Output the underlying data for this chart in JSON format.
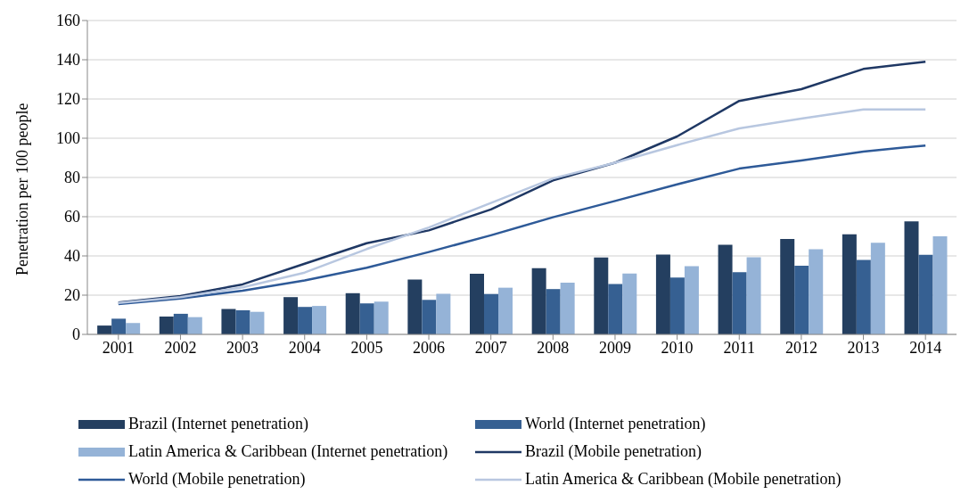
{
  "chart_data": {
    "type": "bar",
    "ylabel": "Penetration per 100 people",
    "categories": [
      "2001",
      "2002",
      "2003",
      "2004",
      "2005",
      "2006",
      "2007",
      "2008",
      "2009",
      "2010",
      "2011",
      "2012",
      "2013",
      "2014"
    ],
    "series": [
      {
        "name": "Brazil (Internet penetration)",
        "color": "#243f60",
        "values": [
          4.5,
          9.1,
          13,
          19,
          21,
          28,
          30.9,
          33.8,
          39.2,
          40.7,
          45.7,
          48.6,
          51,
          57.6
        ]
      },
      {
        "name": "World (Internet penetration)",
        "color": "#366092",
        "values": [
          8,
          10.5,
          12.3,
          14,
          15.8,
          17.6,
          20.6,
          23.1,
          25.7,
          29,
          31.7,
          35,
          38,
          40.6
        ]
      },
      {
        "name": "Latin America & Caribbean (Internet penetration)",
        "color": "#95b3d7",
        "values": [
          5.8,
          8.8,
          11.5,
          14.5,
          16.7,
          20.7,
          23.8,
          26.4,
          31,
          34.8,
          39.3,
          43.4,
          46.7,
          50
        ]
      },
      {
        "name": "Brazil (Mobile penetration)",
        "type": "line",
        "color": "#1f3864",
        "values": [
          16.2,
          19.5,
          25.5,
          36,
          46.5,
          53,
          63.7,
          78.5,
          87.5,
          100.9,
          119,
          125,
          135.3,
          139
        ]
      },
      {
        "name": "World (Mobile penetration)",
        "type": "line",
        "color": "#2e5a98",
        "values": [
          15.5,
          18.3,
          22.3,
          27.5,
          34,
          42,
          50.5,
          59.7,
          68,
          76.5,
          84.5,
          88.6,
          93.2,
          96.3
        ]
      },
      {
        "name": "Latin America & Caribbean (Mobile penetration)",
        "type": "line",
        "color": "#b8c7e0",
        "values": [
          16,
          19,
          24,
          31.5,
          43.5,
          54.5,
          67,
          79.5,
          87.5,
          96.5,
          105,
          110,
          114.7,
          114.7
        ]
      }
    ],
    "ylim": [
      0,
      160
    ],
    "yticks": [
      0,
      20,
      40,
      60,
      80,
      100,
      120,
      140,
      160
    ],
    "grid": "y",
    "legend": "bottom",
    "marker": "none",
    "line_style": "solid"
  }
}
